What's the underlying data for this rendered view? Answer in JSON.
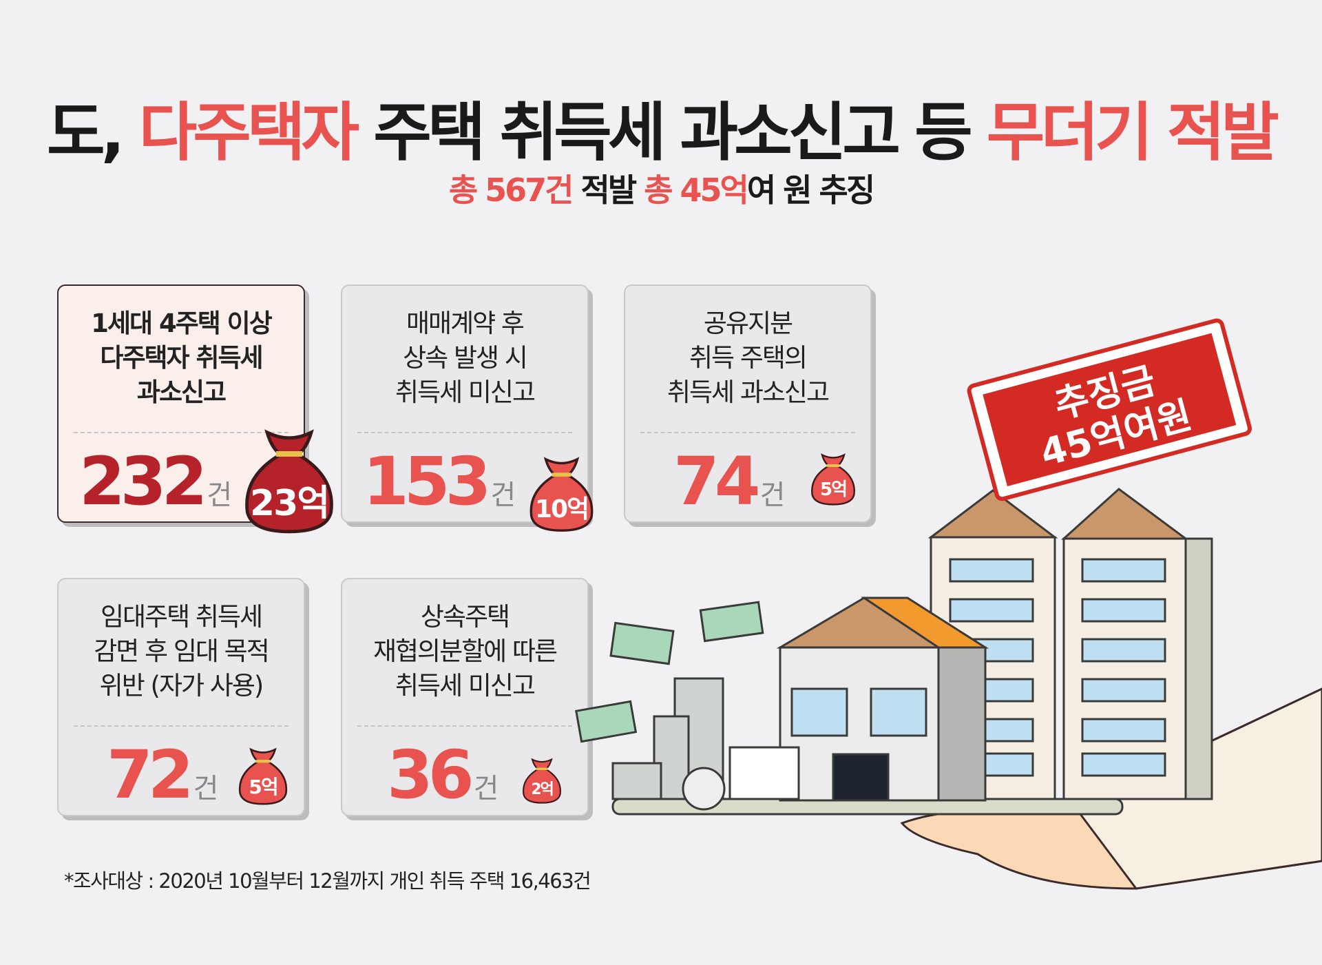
{
  "title": {
    "p1": "도, ",
    "p2": "다주택자",
    "p3": " 주택 취득세 과소신고 등 ",
    "p4": "무더기 적발"
  },
  "subtitle": {
    "p1": "총 567건",
    "p2": " 적발 ",
    "p3": "총 45억",
    "p4": "여 원 추징"
  },
  "cards": [
    {
      "desc": [
        "1세대 4주택 이상",
        "다주택자 취득세",
        "과소신고"
      ],
      "count": "232",
      "unit": "건",
      "amount": "23억"
    },
    {
      "desc": [
        "매매계약 후",
        "상속 발생 시",
        "취득세 미신고"
      ],
      "count": "153",
      "unit": "건",
      "amount": "10억"
    },
    {
      "desc": [
        "공유지분",
        "취득 주택의",
        "취득세 과소신고"
      ],
      "count": "74",
      "unit": "건",
      "amount": "5억"
    },
    {
      "desc": [
        "임대주택 취득세",
        "감면 후 임대 목적",
        "위반 (자가 사용)"
      ],
      "count": "72",
      "unit": "건",
      "amount": "5억"
    },
    {
      "desc": [
        "상속주택",
        "재협의분할에 따른",
        "취득세 미신고"
      ],
      "count": "36",
      "unit": "건",
      "amount": "2억"
    }
  ],
  "stamp": {
    "line1": "추징금",
    "line2": "45억여원"
  },
  "footnote": "*조사대상 : 2020년 10월부터 12월까지 개인 취득 주택 16,463건",
  "colors": {
    "accent": "#e8534f",
    "dark_red": "#b5222a",
    "stamp": "#d42a24",
    "background": "#f1f1f3"
  }
}
